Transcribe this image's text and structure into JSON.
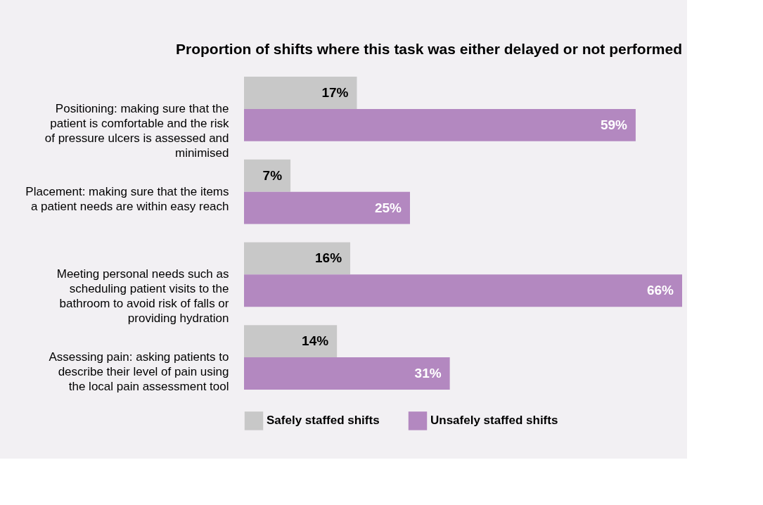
{
  "chart_data": {
    "type": "bar",
    "orientation": "horizontal",
    "title": "Proportion of shifts where this task was either delayed or not performed",
    "categories": [
      "Positioning: making sure that the patient is comfortable and the risk of pressure ulcers is assessed and minimised",
      "Placement: making sure that the items a patient needs are within easy reach",
      "Meeting personal needs such as scheduling patient visits to the bathroom to avoid risk of falls or providing hydration",
      "Assessing pain: asking patients to describe their level of pain using the local pain assessment tool"
    ],
    "series": [
      {
        "name": "Safely staffed shifts",
        "color": "#c8c8c8",
        "values": [
          17,
          7,
          16,
          14
        ],
        "value_labels": [
          "17%",
          "7%",
          "16%",
          "14%"
        ]
      },
      {
        "name": "Unsafely staffed shifts",
        "color": "#b388c0",
        "values": [
          59,
          25,
          66,
          31
        ],
        "value_labels": [
          "59%",
          "25%",
          "66%",
          "31%"
        ]
      }
    ],
    "legend": "bottom",
    "grid": false
  }
}
